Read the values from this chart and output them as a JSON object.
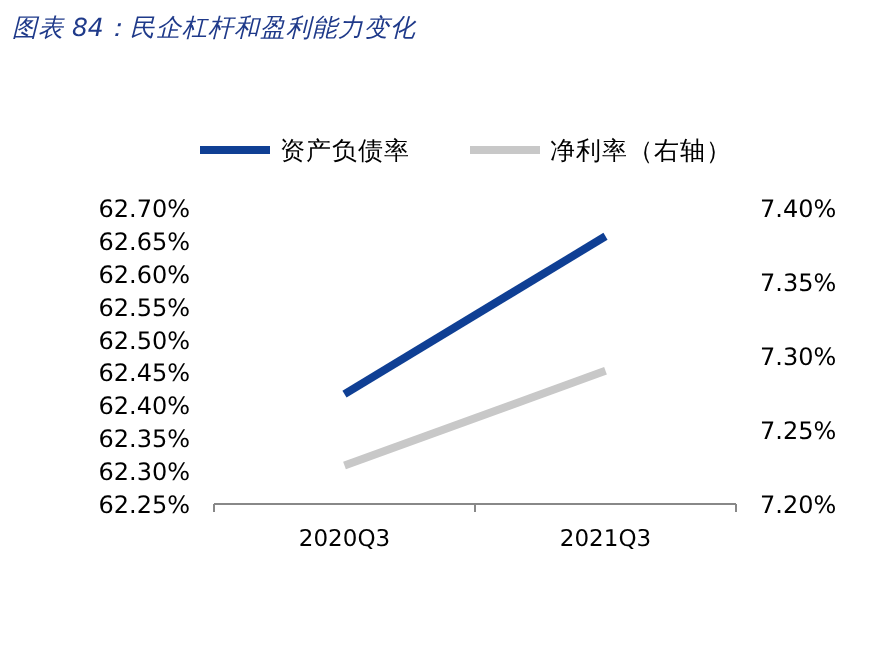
{
  "chart_data": {
    "type": "line",
    "title": "图表 84：民企杠杆和盈利能力变化",
    "categories": [
      "2020Q3",
      "2021Q3"
    ],
    "series": [
      {
        "name": "资产负债率",
        "color": "#0f3f94",
        "values": [
          62.417,
          62.657
        ]
      },
      {
        "name": "净利率（右轴）",
        "color": "#c8c8c8",
        "values": [
          7.226,
          7.29
        ],
        "axis": "y2"
      }
    ],
    "ylim": [
      62.25,
      62.7
    ],
    "yticks": [
      {
        "value": 62.25,
        "label": "62.25%"
      },
      {
        "value": 62.3,
        "label": "62.30%"
      },
      {
        "value": 62.35,
        "label": "62.35%"
      },
      {
        "value": 62.4,
        "label": "62.40%"
      },
      {
        "value": 62.45,
        "label": "62.45%"
      },
      {
        "value": 62.5,
        "label": "62.50%"
      },
      {
        "value": 62.55,
        "label": "62.55%"
      },
      {
        "value": 62.6,
        "label": "62.60%"
      },
      {
        "value": 62.65,
        "label": "62.65%"
      },
      {
        "value": 62.7,
        "label": "62.70%"
      }
    ],
    "y2lim": [
      7.2,
      7.4
    ],
    "y2ticks": [
      {
        "value": 7.2,
        "label": "7.20%"
      },
      {
        "value": 7.25,
        "label": "7.25%"
      },
      {
        "value": 7.3,
        "label": "7.30%"
      },
      {
        "value": 7.35,
        "label": "7.35%"
      },
      {
        "value": 7.4,
        "label": "7.40%"
      }
    ],
    "legend": "top",
    "grid": false
  }
}
